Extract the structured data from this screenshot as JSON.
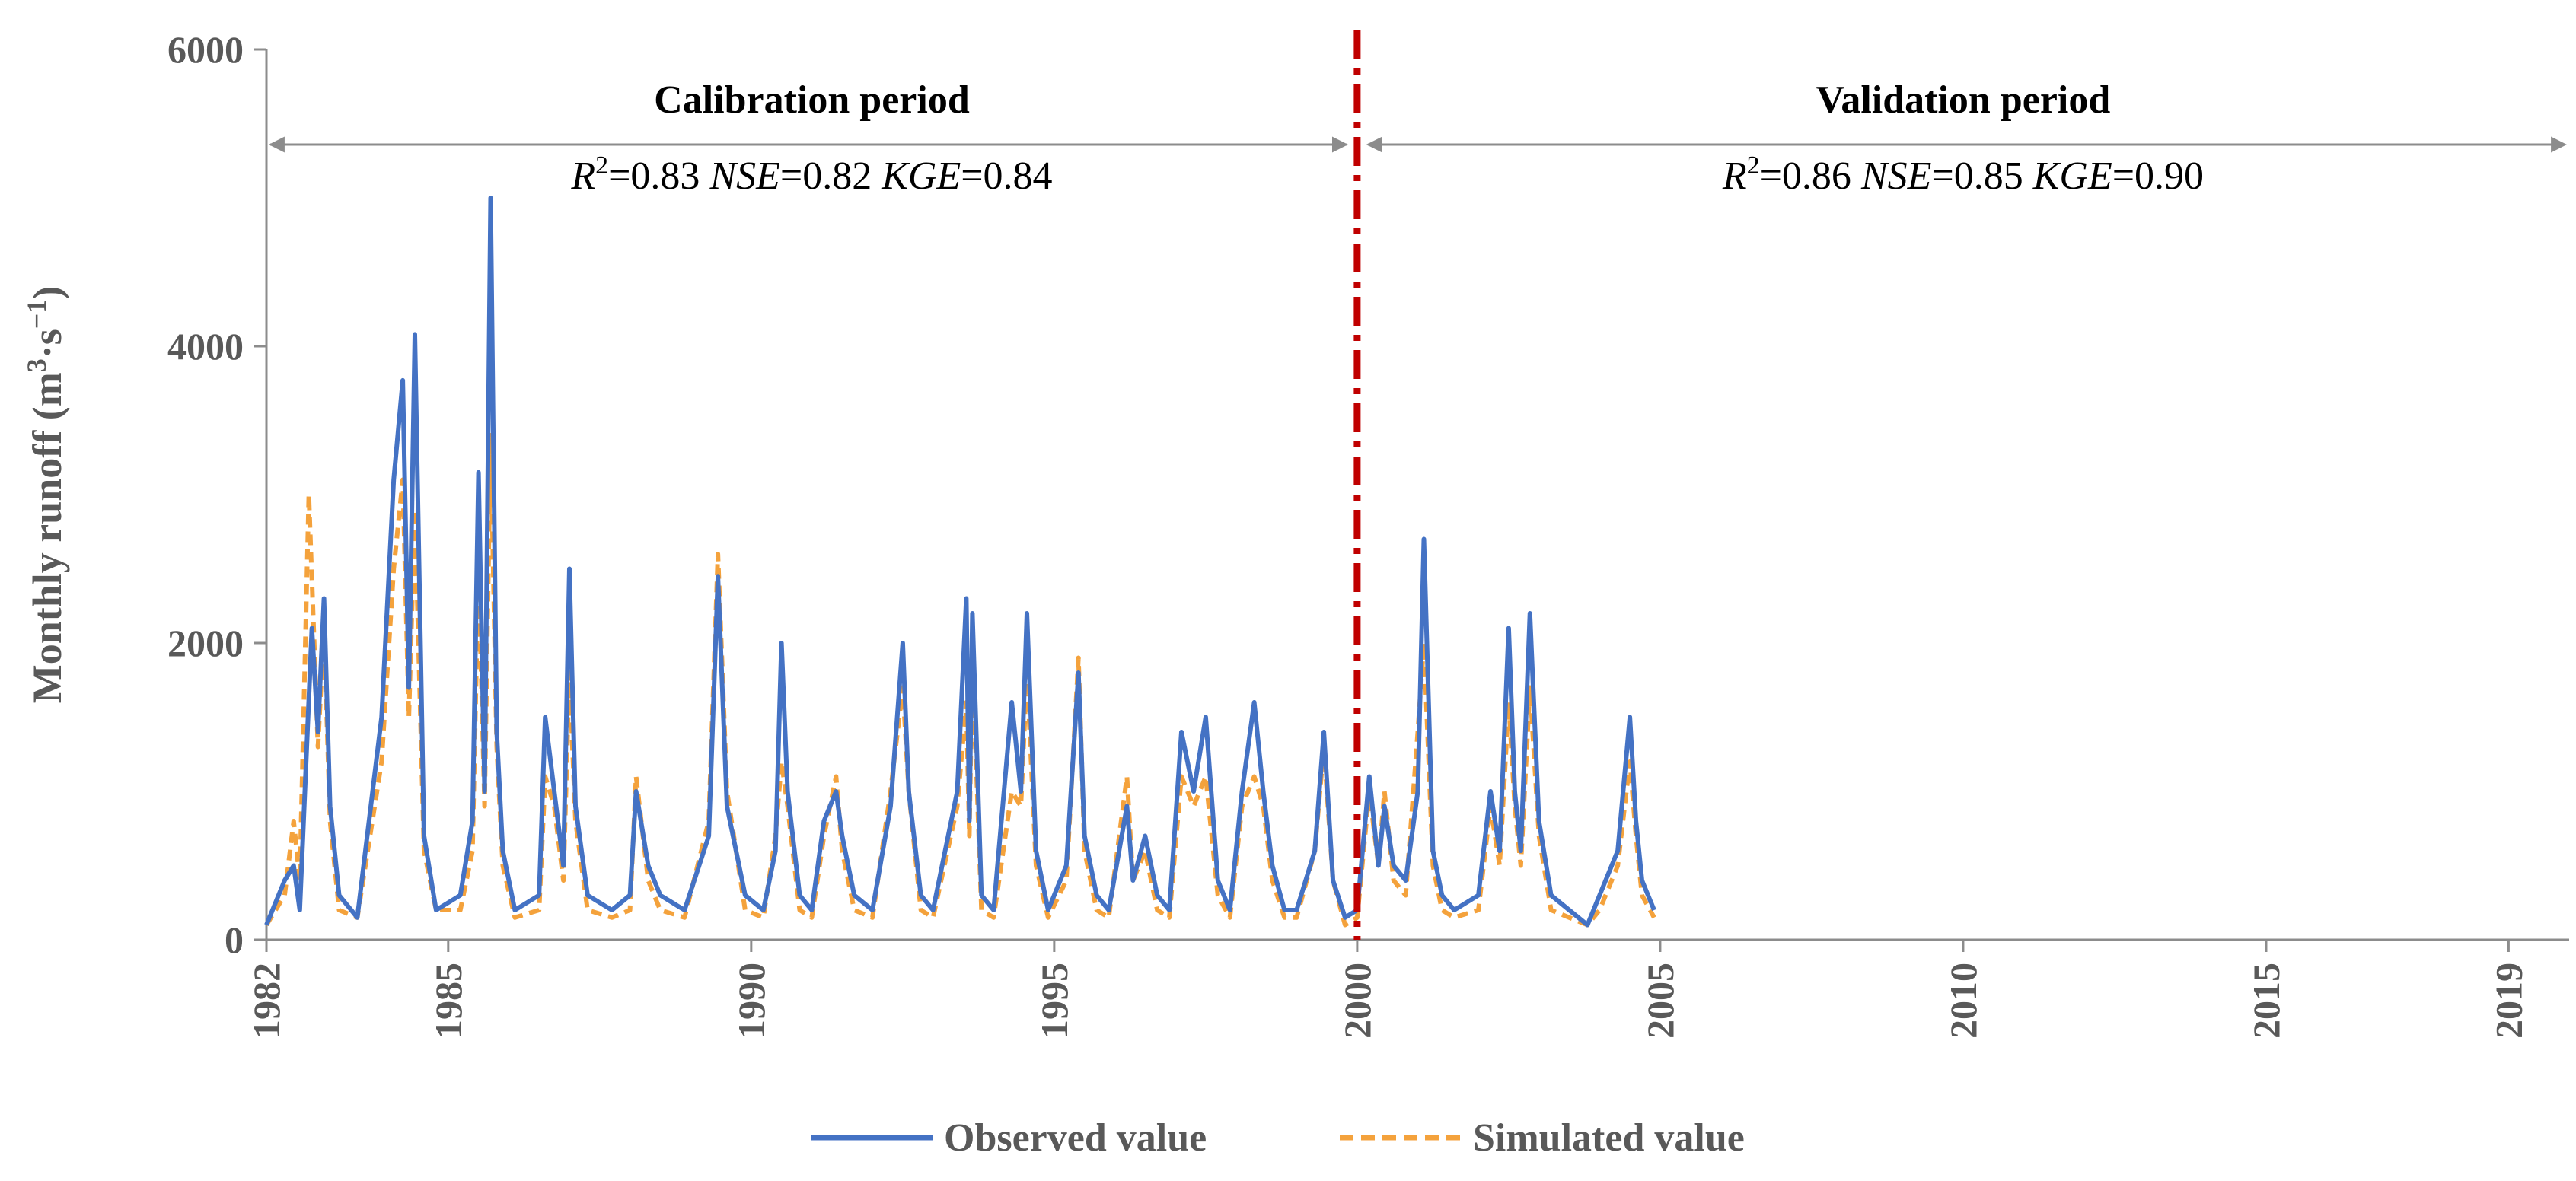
{
  "chart_data": {
    "type": "line",
    "title": "",
    "xlabel": "",
    "ylabel": "Monthly runoff (m³·s⁻¹)",
    "ylabel_parts": {
      "main": "Monthly runoff (m",
      "sup1": "3",
      "mid": "·s",
      "sup2": "−1",
      "end": ")"
    },
    "ylim": [
      0,
      6000
    ],
    "yticks": [
      "0",
      "2000",
      "4000",
      "6000"
    ],
    "ytick_values": [
      0,
      2000,
      4000,
      6000
    ],
    "xlim": [
      1982,
      2020
    ],
    "xticks": [
      "1982",
      "1985",
      "1990",
      "1995",
      "2000",
      "2005",
      "2010",
      "2015",
      "2019"
    ],
    "xtick_values": [
      1982,
      1985,
      1990,
      1995,
      2000,
      2005,
      2010,
      2015,
      2019
    ],
    "split_year": 2000,
    "periods": [
      {
        "name": "Calibration period",
        "range": [
          1982,
          2000
        ],
        "metrics": {
          "r2_label": "R",
          "r2_sup": "2",
          "r2": "=0.83",
          "nse_label": "NSE",
          "nse": "=0.82",
          "kge_label": "KGE",
          "kge": "=0.84"
        }
      },
      {
        "name": "Validation period",
        "range": [
          2000,
          2020
        ],
        "metrics": {
          "r2_label": "R",
          "r2_sup": "2",
          "r2": "=0.86",
          "nse_label": "NSE",
          "nse": "=0.85",
          "kge_label": "KGE",
          "kge": "=0.90"
        }
      }
    ],
    "legend": {
      "position": "bottom-center",
      "entries": [
        "Observed value",
        "Simulated value"
      ]
    },
    "series": [
      {
        "name": "Observed value",
        "color": "#4472C4",
        "style": "solid",
        "points": [
          [
            1982.0,
            100
          ],
          [
            1982.3,
            400
          ],
          [
            1982.45,
            500
          ],
          [
            1982.55,
            200
          ],
          [
            1982.75,
            2100
          ],
          [
            1982.85,
            1400
          ],
          [
            1982.95,
            2300
          ],
          [
            1983.05,
            900
          ],
          [
            1983.2,
            300
          ],
          [
            1983.5,
            150
          ],
          [
            1983.9,
            1500
          ],
          [
            1984.1,
            3100
          ],
          [
            1984.25,
            3770
          ],
          [
            1984.35,
            1700
          ],
          [
            1984.45,
            4080
          ],
          [
            1984.6,
            700
          ],
          [
            1984.8,
            200
          ],
          [
            1985.2,
            300
          ],
          [
            1985.4,
            800
          ],
          [
            1985.5,
            3150
          ],
          [
            1985.6,
            1000
          ],
          [
            1985.7,
            5000
          ],
          [
            1985.8,
            1400
          ],
          [
            1985.9,
            600
          ],
          [
            1986.1,
            200
          ],
          [
            1986.5,
            300
          ],
          [
            1986.6,
            1500
          ],
          [
            1986.75,
            1000
          ],
          [
            1986.9,
            500
          ],
          [
            1987.0,
            2500
          ],
          [
            1987.1,
            900
          ],
          [
            1987.3,
            300
          ],
          [
            1987.7,
            200
          ],
          [
            1988.0,
            300
          ],
          [
            1988.1,
            1000
          ],
          [
            1988.3,
            500
          ],
          [
            1988.5,
            300
          ],
          [
            1988.9,
            200
          ],
          [
            1989.3,
            700
          ],
          [
            1989.45,
            2450
          ],
          [
            1989.6,
            900
          ],
          [
            1989.9,
            300
          ],
          [
            1990.2,
            200
          ],
          [
            1990.4,
            600
          ],
          [
            1990.5,
            2000
          ],
          [
            1990.6,
            1000
          ],
          [
            1990.8,
            300
          ],
          [
            1991.0,
            200
          ],
          [
            1991.2,
            800
          ],
          [
            1991.4,
            1000
          ],
          [
            1991.5,
            700
          ],
          [
            1991.7,
            300
          ],
          [
            1992.0,
            200
          ],
          [
            1992.3,
            900
          ],
          [
            1992.5,
            2000
          ],
          [
            1992.6,
            1000
          ],
          [
            1992.8,
            300
          ],
          [
            1993.0,
            200
          ],
          [
            1993.4,
            1000
          ],
          [
            1993.55,
            2300
          ],
          [
            1993.6,
            800
          ],
          [
            1993.65,
            2200
          ],
          [
            1993.8,
            300
          ],
          [
            1994.0,
            200
          ],
          [
            1994.3,
            1600
          ],
          [
            1994.45,
            1000
          ],
          [
            1994.55,
            2200
          ],
          [
            1994.7,
            600
          ],
          [
            1994.9,
            200
          ],
          [
            1995.2,
            500
          ],
          [
            1995.4,
            1800
          ],
          [
            1995.5,
            700
          ],
          [
            1995.7,
            300
          ],
          [
            1995.9,
            200
          ],
          [
            1996.2,
            900
          ],
          [
            1996.3,
            400
          ],
          [
            1996.5,
            700
          ],
          [
            1996.7,
            300
          ],
          [
            1996.9,
            200
          ],
          [
            1997.1,
            1400
          ],
          [
            1997.3,
            1000
          ],
          [
            1997.5,
            1500
          ],
          [
            1997.7,
            400
          ],
          [
            1997.9,
            200
          ],
          [
            1998.1,
            1000
          ],
          [
            1998.3,
            1600
          ],
          [
            1998.45,
            1000
          ],
          [
            1998.6,
            500
          ],
          [
            1998.8,
            200
          ],
          [
            1999.0,
            200
          ],
          [
            1999.3,
            600
          ],
          [
            1999.45,
            1400
          ],
          [
            1999.6,
            400
          ],
          [
            1999.8,
            150
          ],
          [
            2000.0,
            200
          ],
          [
            2000.2,
            1100
          ],
          [
            2000.35,
            500
          ],
          [
            2000.45,
            900
          ],
          [
            2000.6,
            500
          ],
          [
            2000.8,
            400
          ],
          [
            2001.0,
            1000
          ],
          [
            2001.1,
            2700
          ],
          [
            2001.25,
            600
          ],
          [
            2001.4,
            300
          ],
          [
            2001.6,
            200
          ],
          [
            2002.0,
            300
          ],
          [
            2002.2,
            1000
          ],
          [
            2002.35,
            600
          ],
          [
            2002.5,
            2100
          ],
          [
            2002.6,
            1000
          ],
          [
            2002.7,
            600
          ],
          [
            2002.85,
            2200
          ],
          [
            2003.0,
            800
          ],
          [
            2003.2,
            300
          ],
          [
            2003.5,
            200
          ],
          [
            2003.8,
            100
          ],
          [
            2004.0,
            300
          ],
          [
            2004.3,
            600
          ],
          [
            2004.5,
            1500
          ],
          [
            2004.6,
            800
          ],
          [
            2004.7,
            400
          ],
          [
            2004.9,
            200
          ]
        ]
      },
      {
        "name": "Simulated value",
        "color": "#F4A23C",
        "style": "dashed",
        "points": [
          [
            1982.0,
            100
          ],
          [
            1982.3,
            300
          ],
          [
            1982.45,
            800
          ],
          [
            1982.55,
            400
          ],
          [
            1982.7,
            3000
          ],
          [
            1982.85,
            1300
          ],
          [
            1982.95,
            2100
          ],
          [
            1983.05,
            800
          ],
          [
            1983.2,
            200
          ],
          [
            1983.5,
            150
          ],
          [
            1983.9,
            1200
          ],
          [
            1984.1,
            2500
          ],
          [
            1984.25,
            3100
          ],
          [
            1984.35,
            1500
          ],
          [
            1984.45,
            2900
          ],
          [
            1984.6,
            600
          ],
          [
            1984.8,
            200
          ],
          [
            1985.2,
            200
          ],
          [
            1985.4,
            600
          ],
          [
            1985.5,
            2500
          ],
          [
            1985.6,
            900
          ],
          [
            1985.7,
            3400
          ],
          [
            1985.8,
            1300
          ],
          [
            1985.9,
            500
          ],
          [
            1986.1,
            150
          ],
          [
            1986.5,
            200
          ],
          [
            1986.6,
            1100
          ],
          [
            1986.75,
            900
          ],
          [
            1986.9,
            400
          ],
          [
            1987.0,
            1800
          ],
          [
            1987.1,
            800
          ],
          [
            1987.3,
            200
          ],
          [
            1987.7,
            150
          ],
          [
            1988.0,
            200
          ],
          [
            1988.1,
            1100
          ],
          [
            1988.3,
            400
          ],
          [
            1988.5,
            200
          ],
          [
            1988.9,
            150
          ],
          [
            1989.3,
            800
          ],
          [
            1989.45,
            2600
          ],
          [
            1989.6,
            1000
          ],
          [
            1989.9,
            200
          ],
          [
            1990.2,
            150
          ],
          [
            1990.4,
            700
          ],
          [
            1990.5,
            1200
          ],
          [
            1990.6,
            900
          ],
          [
            1990.8,
            200
          ],
          [
            1991.0,
            150
          ],
          [
            1991.2,
            700
          ],
          [
            1991.4,
            1100
          ],
          [
            1991.5,
            600
          ],
          [
            1991.7,
            200
          ],
          [
            1992.0,
            150
          ],
          [
            1992.3,
            1000
          ],
          [
            1992.5,
            1700
          ],
          [
            1992.6,
            1000
          ],
          [
            1992.8,
            200
          ],
          [
            1993.0,
            150
          ],
          [
            1993.4,
            900
          ],
          [
            1993.55,
            1600
          ],
          [
            1993.6,
            700
          ],
          [
            1993.65,
            1900
          ],
          [
            1993.8,
            200
          ],
          [
            1994.0,
            150
          ],
          [
            1994.3,
            1000
          ],
          [
            1994.45,
            900
          ],
          [
            1994.55,
            1800
          ],
          [
            1994.7,
            500
          ],
          [
            1994.9,
            150
          ],
          [
            1995.2,
            400
          ],
          [
            1995.4,
            1900
          ],
          [
            1995.5,
            600
          ],
          [
            1995.7,
            200
          ],
          [
            1995.9,
            150
          ],
          [
            1996.2,
            1100
          ],
          [
            1996.3,
            400
          ],
          [
            1996.5,
            600
          ],
          [
            1996.7,
            200
          ],
          [
            1996.9,
            150
          ],
          [
            1997.1,
            1100
          ],
          [
            1997.3,
            900
          ],
          [
            1997.5,
            1100
          ],
          [
            1997.7,
            300
          ],
          [
            1997.9,
            150
          ],
          [
            1998.1,
            900
          ],
          [
            1998.3,
            1100
          ],
          [
            1998.45,
            900
          ],
          [
            1998.6,
            400
          ],
          [
            1998.8,
            150
          ],
          [
            1999.0,
            150
          ],
          [
            1999.3,
            600
          ],
          [
            1999.45,
            1300
          ],
          [
            1999.6,
            400
          ],
          [
            1999.8,
            100
          ],
          [
            2000.0,
            150
          ],
          [
            2000.2,
            1000
          ],
          [
            2000.35,
            500
          ],
          [
            2000.45,
            1000
          ],
          [
            2000.6,
            400
          ],
          [
            2000.8,
            300
          ],
          [
            2001.0,
            1400
          ],
          [
            2001.1,
            2000
          ],
          [
            2001.25,
            500
          ],
          [
            2001.4,
            200
          ],
          [
            2001.6,
            150
          ],
          [
            2002.0,
            200
          ],
          [
            2002.2,
            900
          ],
          [
            2002.35,
            500
          ],
          [
            2002.5,
            1600
          ],
          [
            2002.6,
            900
          ],
          [
            2002.7,
            500
          ],
          [
            2002.85,
            1700
          ],
          [
            2003.0,
            700
          ],
          [
            2003.2,
            200
          ],
          [
            2003.5,
            150
          ],
          [
            2003.8,
            100
          ],
          [
            2004.0,
            200
          ],
          [
            2004.3,
            500
          ],
          [
            2004.5,
            1200
          ],
          [
            2004.6,
            700
          ],
          [
            2004.7,
            300
          ],
          [
            2004.9,
            150
          ]
        ]
      }
    ]
  }
}
